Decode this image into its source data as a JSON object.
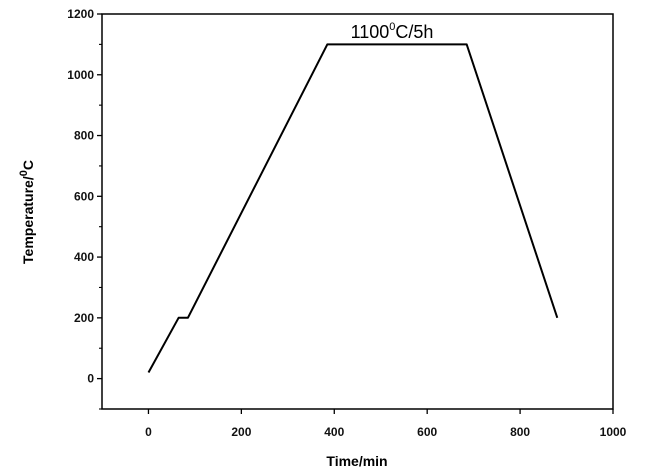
{
  "chart_data": {
    "type": "line",
    "xlabel": "Time/min",
    "ylabel": {
      "base": "Temperature/",
      "sup": "0",
      "rest": "C"
    },
    "xlim": [
      -100,
      1000
    ],
    "ylim": [
      -100,
      1200
    ],
    "xticks": [
      0,
      200,
      400,
      600,
      800,
      1000
    ],
    "yticks": [
      0,
      200,
      400,
      600,
      800,
      1000,
      1200
    ],
    "grid": false,
    "series": [
      {
        "x": [
          0,
          65,
          85,
          385,
          685,
          880
        ],
        "y": [
          20,
          200,
          200,
          1100,
          1100,
          200
        ]
      }
    ],
    "annotation": {
      "base": "1100",
      "sup": "0",
      "rest": "C/5h",
      "x": 535,
      "y": 1100
    },
    "line_color": "#000000"
  }
}
